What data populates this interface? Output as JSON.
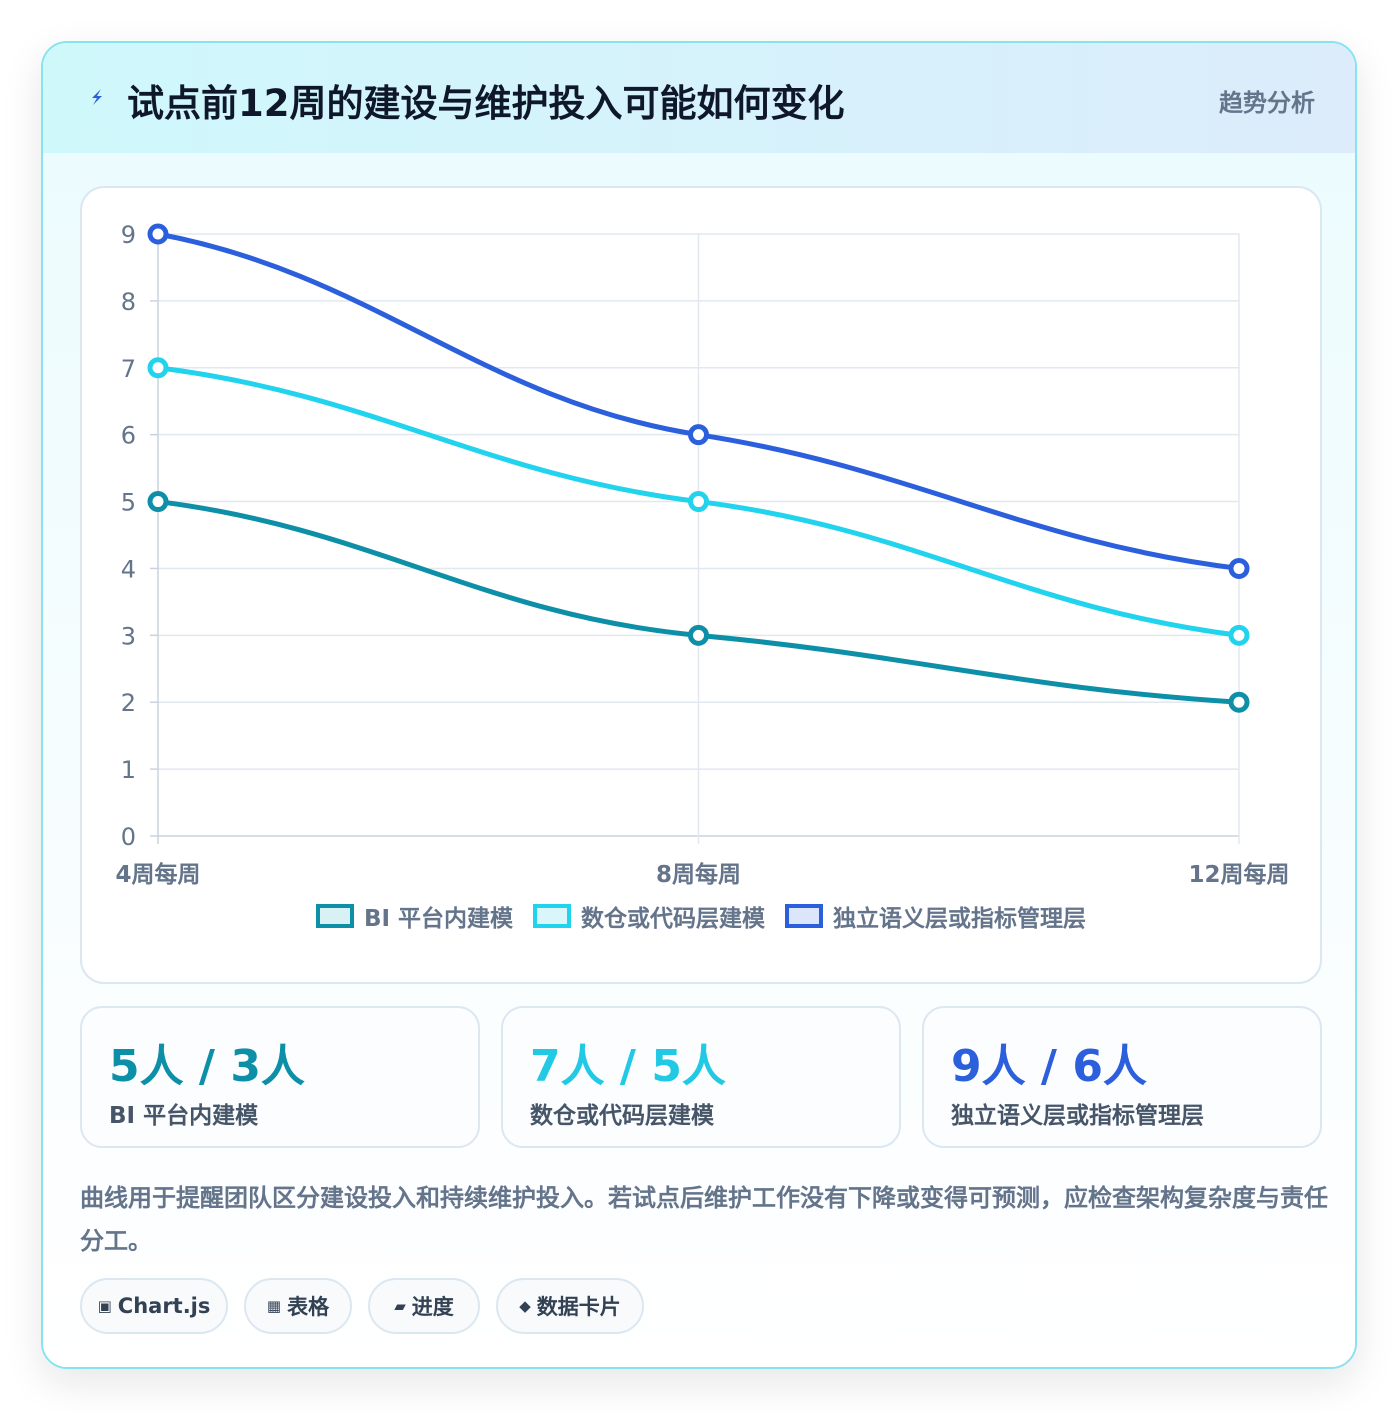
{
  "header": {
    "title": "试点前12周的建设与维护投入可能如何变化",
    "tag": "趋势分析"
  },
  "chart_data": {
    "type": "line",
    "categories": [
      "4周每周",
      "8周每周",
      "12周每周"
    ],
    "ylim": [
      0,
      9
    ],
    "yticks": [
      "0",
      "1",
      "2",
      "3",
      "4",
      "5",
      "6",
      "7",
      "8",
      "9"
    ],
    "grid": true,
    "legend_position": "bottom",
    "series": [
      {
        "name": "BI 平台内建模",
        "values": [
          5,
          3,
          2
        ],
        "color": "#0e8fa8",
        "fill": "#d7f1f5"
      },
      {
        "name": "数仓或代码层建模",
        "values": [
          7,
          5,
          3
        ],
        "color": "#22d3ee",
        "fill": "#d9f7fb"
      },
      {
        "name": "独立语义层或指标管理层",
        "values": [
          9,
          6,
          4
        ],
        "color": "#2b5fdc",
        "fill": "#dce6fa"
      }
    ]
  },
  "stats": [
    {
      "value": "5人 / 3人",
      "label": "BI 平台内建模",
      "color": "#0e8fa8"
    },
    {
      "value": "7人 / 5人",
      "label": "数仓或代码层建模",
      "color": "#22c9e4"
    },
    {
      "value": "9人 / 6人",
      "label": "独立语义层或指标管理层",
      "color": "#2b5fdc"
    }
  ],
  "note": "曲线用于提醒团队区分建设投入和持续维护投入。若试点后维护工作没有下降或变得可预测，应检查架构复杂度与责任分工。",
  "chips": [
    {
      "icon": "▣",
      "label": "Chart.js"
    },
    {
      "icon": "▦",
      "label": "表格"
    },
    {
      "icon": "▰",
      "label": "进度"
    },
    {
      "icon": "◆",
      "label": "数据卡片"
    }
  ]
}
